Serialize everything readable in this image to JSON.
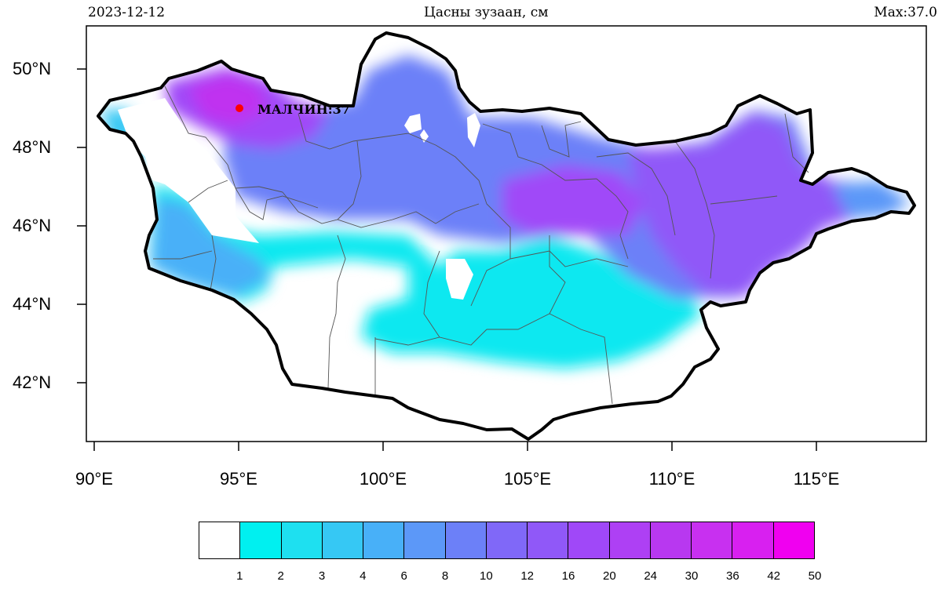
{
  "header": {
    "date": "2023-12-12",
    "title": "Цасны зузаан, см",
    "max_label": "Max:37.0"
  },
  "map": {
    "region": "Mongolia",
    "lon_labels": [
      "90°E",
      "95°E",
      "100°E",
      "105°E",
      "110°E",
      "115°E"
    ],
    "lat_labels": [
      "50°N",
      "48°N",
      "46°N",
      "44°N",
      "42°N"
    ],
    "station": {
      "name_label": "МАЛЧИН:37",
      "lon": 95.0,
      "lat": 49.0,
      "value": 37,
      "marker_color": "#ff0000"
    }
  },
  "colorbar": {
    "labels": [
      "1",
      "2",
      "3",
      "4",
      "6",
      "8",
      "10",
      "12",
      "16",
      "20",
      "24",
      "30",
      "36",
      "42",
      "50"
    ],
    "colors": [
      "#ffffff",
      "#00f0f0",
      "#1ee0f0",
      "#36c8f4",
      "#48b0f8",
      "#5c98f8",
      "#6c80f8",
      "#8068f8",
      "#9058f8",
      "#a048f8",
      "#ae40f4",
      "#b838f0",
      "#c830f0",
      "#d820f0",
      "#f000f0"
    ]
  }
}
